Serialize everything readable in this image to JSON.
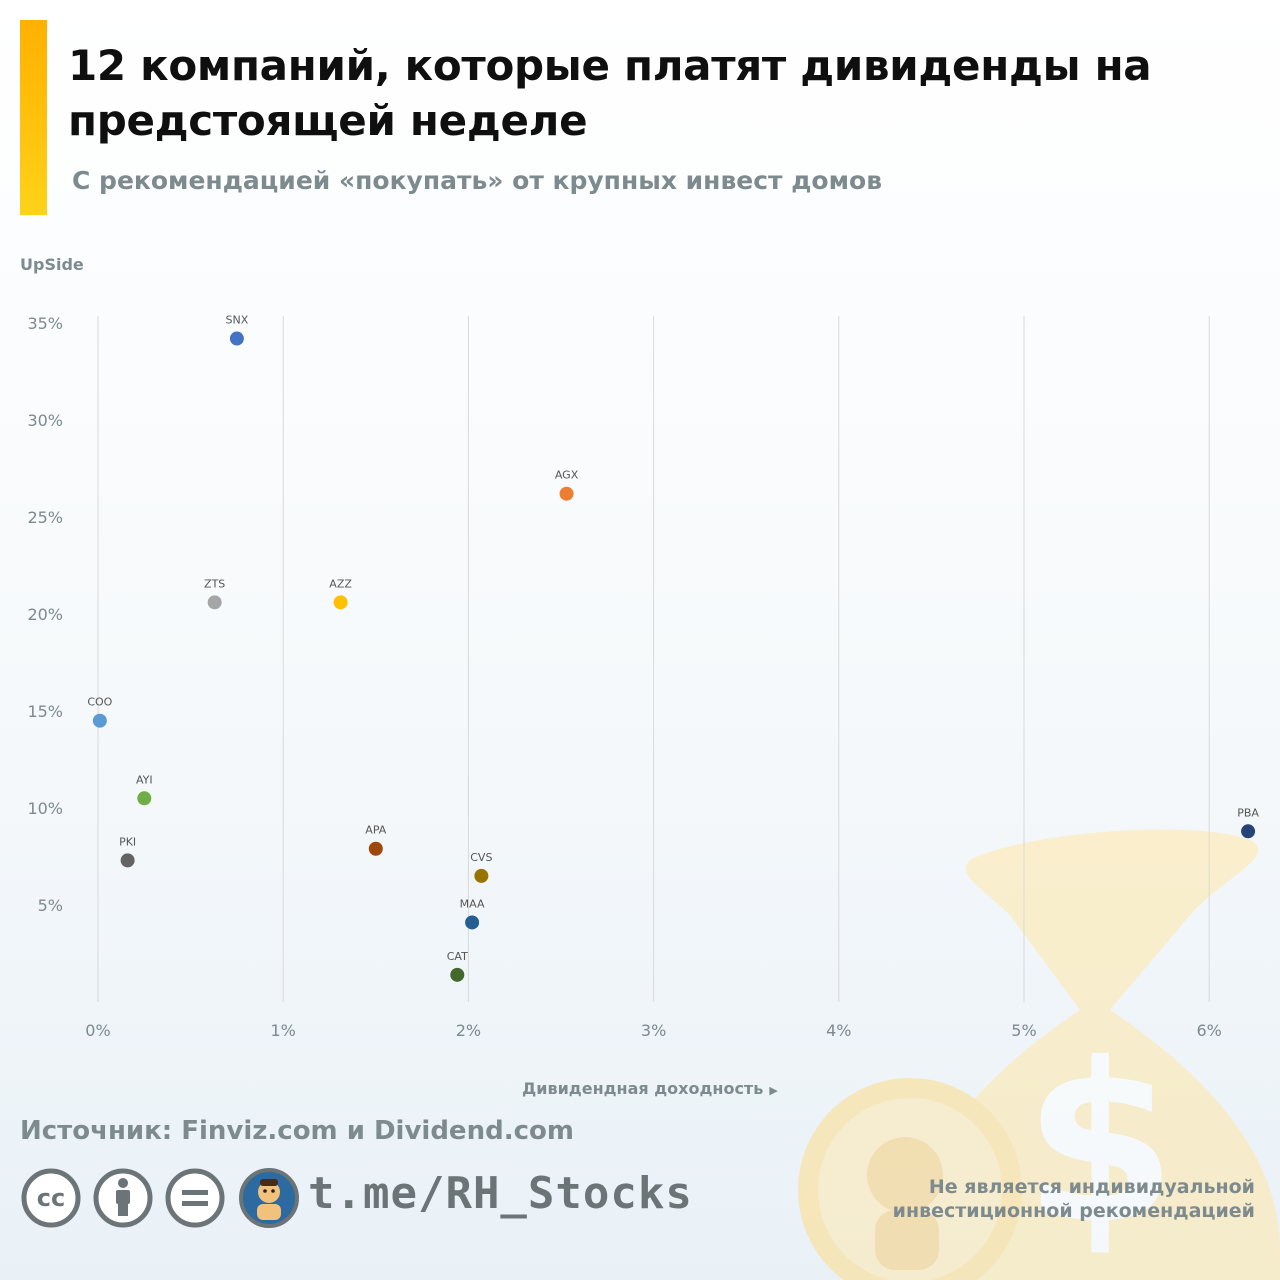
{
  "header": {
    "title": "12 компаний, которые платят дивиденды на предстоящей неделе",
    "subtitle": "С рекомендацией «покупать» от крупных инвест домов"
  },
  "chart_data": {
    "type": "scatter",
    "ylabel": "UpSide",
    "xlabel": "Дивидендная доходность",
    "xlim": [
      0,
      6.3
    ],
    "ylim": [
      0,
      35
    ],
    "x_ticks": [
      "0%",
      "1%",
      "2%",
      "3%",
      "4%",
      "5%",
      "6%"
    ],
    "y_ticks": [
      "5%",
      "10%",
      "15%",
      "20%",
      "25%",
      "30%",
      "35%"
    ],
    "grid": "vertical",
    "points": [
      {
        "label": "SNX",
        "x": 0.75,
        "y": 34.2,
        "color": "#4472c4"
      },
      {
        "label": "AGX",
        "x": 2.53,
        "y": 26.2,
        "color": "#ed7d31"
      },
      {
        "label": "ZTS",
        "x": 0.63,
        "y": 20.6,
        "color": "#a5a5a5"
      },
      {
        "label": "AZZ",
        "x": 1.31,
        "y": 20.6,
        "color": "#ffc000"
      },
      {
        "label": "COO",
        "x": 0.01,
        "y": 14.5,
        "color": "#5b9bd5"
      },
      {
        "label": "AYI",
        "x": 0.25,
        "y": 10.5,
        "color": "#70ad47"
      },
      {
        "label": "PKI",
        "x": 0.16,
        "y": 7.3,
        "color": "#636363"
      },
      {
        "label": "APA",
        "x": 1.5,
        "y": 7.9,
        "color": "#9e480e"
      },
      {
        "label": "CVS",
        "x": 2.07,
        "y": 6.5,
        "color": "#997300"
      },
      {
        "label": "MAA",
        "x": 2.02,
        "y": 4.1,
        "color": "#255e91"
      },
      {
        "label": "CAT",
        "x": 1.94,
        "y": 1.4,
        "color": "#43682b"
      },
      {
        "label": "PBA",
        "x": 6.21,
        "y": 8.8,
        "color": "#264478"
      }
    ]
  },
  "footer": {
    "source": "Источник: Finviz.com и Dividend.com",
    "channel": "t.me/RH_Stocks",
    "disclaimer": "Не является индивидуальной инвестиционной рекомендацией",
    "icons": [
      "creative-commons-icon",
      "attribution-icon",
      "no-derivatives-icon",
      "channel-avatar-icon"
    ]
  },
  "colors": {
    "accent": "#ffc000",
    "muted_text": "#7d8a8e",
    "grid": "#d9d9d9"
  }
}
